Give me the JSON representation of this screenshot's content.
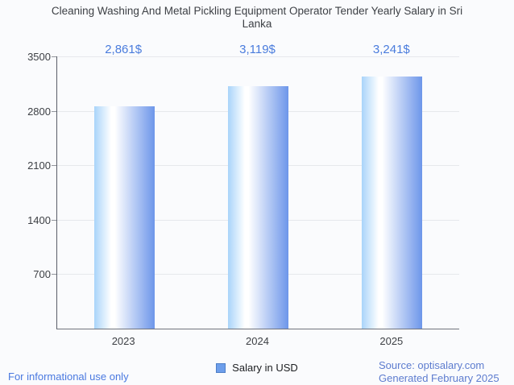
{
  "title": "Cleaning Washing And Metal Pickling Equipment Operator Tender Yearly Salary in Sri Lanka",
  "chart_data": {
    "type": "bar",
    "categories": [
      "2023",
      "2024",
      "2025"
    ],
    "values": [
      2861,
      3119,
      3241
    ],
    "value_labels": [
      "2,861$",
      "3,119$",
      "3,241$"
    ],
    "series": [
      {
        "name": "Salary in USD",
        "values": [
          2861,
          3119,
          3241
        ]
      }
    ],
    "title": "Cleaning Washing And Metal Pickling Equipment Operator Tender Yearly Salary in Sri Lanka",
    "xlabel": "",
    "ylabel": "",
    "ylim": [
      0,
      3500
    ],
    "yticks": [
      700,
      1400,
      2100,
      2800,
      3500
    ],
    "grid": true,
    "legend_position": "bottom"
  },
  "legend": {
    "label": "Salary in USD"
  },
  "footer": {
    "left": "For informational use only",
    "source": "Source: optisalary.com",
    "generated": "Generated February 2025"
  },
  "colors": {
    "bg": "#fafbfd",
    "text": "#3d4045",
    "grid": "#e6e8ec",
    "axis": "#5a5e68",
    "baseline": "#70737c",
    "value-label": "#4a7cdd",
    "footer-left": "#4a79e0",
    "footer-right": "#5d7ccf",
    "legend-fill": "#6d9eeb",
    "legend-border": "#4d7ec7",
    "bar-start": "#a9d4fa",
    "bar-mid": "#ffffff",
    "bar-end": "#6d96ea"
  }
}
